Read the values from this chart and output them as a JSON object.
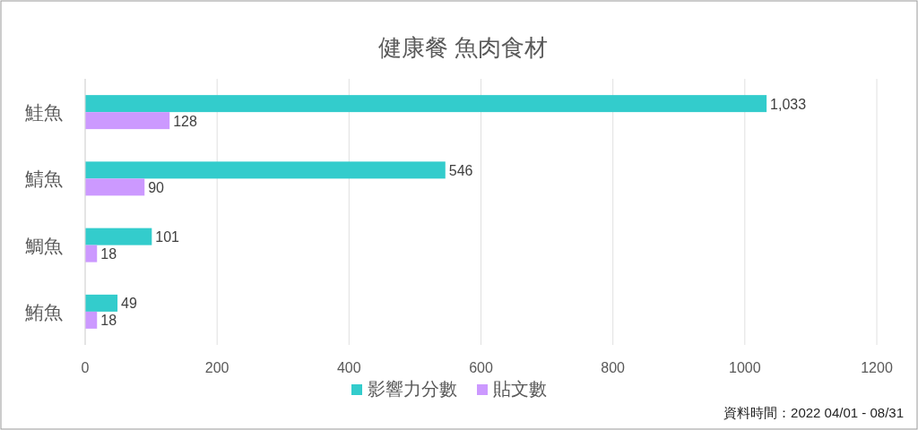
{
  "chart_data": {
    "type": "bar",
    "orientation": "horizontal",
    "title": "健康餐 魚肉食材",
    "categories": [
      "鮭魚",
      "鯖魚",
      "鯛魚",
      "鮪魚"
    ],
    "series": [
      {
        "name": "影響力分數",
        "color": "#33cccc",
        "values": [
          1033,
          546,
          101,
          49
        ],
        "value_labels": [
          "1,033",
          "546",
          "101",
          "49"
        ]
      },
      {
        "name": "貼文數",
        "color": "#cc99ff",
        "values": [
          128,
          90,
          18,
          18
        ],
        "value_labels": [
          "128",
          "90",
          "18",
          "18"
        ]
      }
    ],
    "xlim": [
      0,
      1200
    ],
    "xticks": [
      0,
      200,
      400,
      600,
      800,
      1000,
      1200
    ],
    "grid": "x",
    "legend": "bottom",
    "annotations": [
      "資料時間：2022 04/01 - 08/31"
    ]
  }
}
